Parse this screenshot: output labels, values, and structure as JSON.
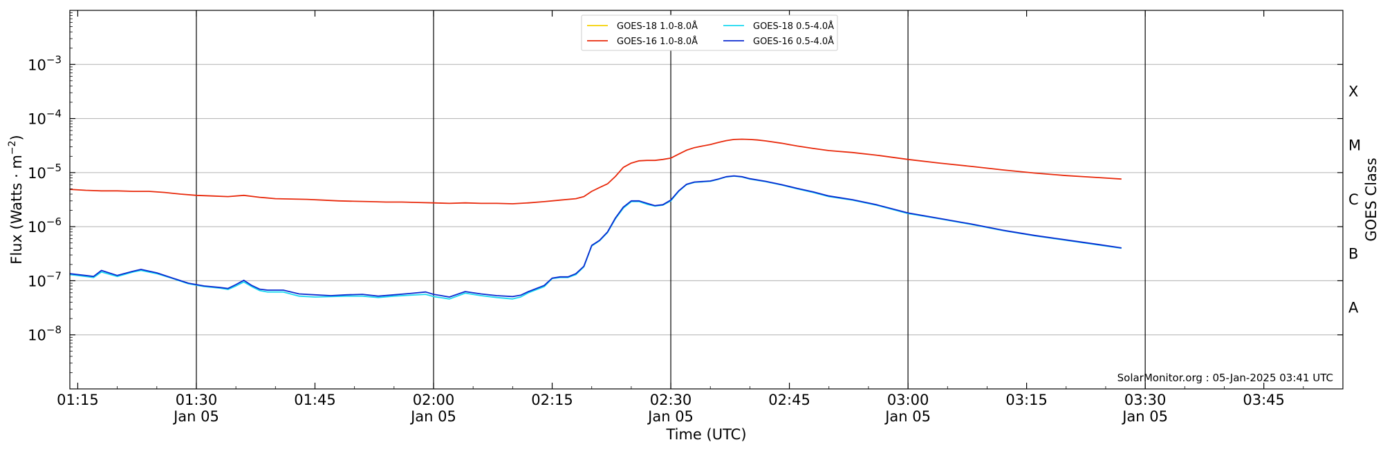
{
  "chart_data": {
    "type": "line",
    "xlabel": "Time (UTC)",
    "ylabel_main": "Flux (Watts · m",
    "ylabel_sup": "−2",
    "ylabel_end": ")",
    "y2label": "GOES Class",
    "yscale": "log",
    "ylim": [
      1e-09,
      0.01
    ],
    "xlim": [
      "01:14",
      "03:55"
    ],
    "grid": "horizontal",
    "legend_position": "top-center",
    "x_ticks": [
      {
        "time": "01:15",
        "label": "01:15",
        "sublabel": ""
      },
      {
        "time": "01:30",
        "label": "01:30",
        "sublabel": "Jan 05"
      },
      {
        "time": "01:45",
        "label": "01:45",
        "sublabel": ""
      },
      {
        "time": "02:00",
        "label": "02:00",
        "sublabel": "Jan 05"
      },
      {
        "time": "02:15",
        "label": "02:15",
        "sublabel": ""
      },
      {
        "time": "02:30",
        "label": "02:30",
        "sublabel": "Jan 05"
      },
      {
        "time": "02:45",
        "label": "02:45",
        "sublabel": ""
      },
      {
        "time": "03:00",
        "label": "03:00",
        "sublabel": "Jan 05"
      },
      {
        "time": "03:15",
        "label": "03:15",
        "sublabel": ""
      },
      {
        "time": "03:30",
        "label": "03:30",
        "sublabel": "Jan 05"
      },
      {
        "time": "03:45",
        "label": "03:45",
        "sublabel": ""
      }
    ],
    "vertical_lines": [
      "01:30",
      "02:00",
      "02:30",
      "03:00",
      "03:30"
    ],
    "y_ticks": [
      {
        "value": 1e-08,
        "base": "10",
        "exp": "−8"
      },
      {
        "value": 1e-07,
        "base": "10",
        "exp": "−7"
      },
      {
        "value": 1e-06,
        "base": "10",
        "exp": "−6"
      },
      {
        "value": 1e-05,
        "base": "10",
        "exp": "−5"
      },
      {
        "value": 0.0001,
        "base": "10",
        "exp": "−4"
      },
      {
        "value": 0.001,
        "base": "10",
        "exp": "−3"
      }
    ],
    "goes_classes": [
      {
        "label": "A",
        "value": 3.162e-08
      },
      {
        "label": "B",
        "value": 3.162e-07
      },
      {
        "label": "C",
        "value": 3.162e-06
      },
      {
        "label": "M",
        "value": 3.162e-05
      },
      {
        "label": "X",
        "value": 0.0003162
      }
    ],
    "annotation": "SolarMonitor.org : 05-Jan-2025 03:41 UTC",
    "series": [
      {
        "name": "GOES-18 1.0-8.0Å",
        "color": "#f5d000",
        "points": [],
        "draw": false
      },
      {
        "name": "GOES-16 1.0-8.0Å",
        "color": "#e8280a",
        "draw": true,
        "points": [
          [
            "01:14",
            4.9e-06
          ],
          [
            "01:16",
            4.7e-06
          ],
          [
            "01:18",
            4.6e-06
          ],
          [
            "01:20",
            4.6e-06
          ],
          [
            "01:22",
            4.5e-06
          ],
          [
            "01:24",
            4.5e-06
          ],
          [
            "01:26",
            4.3e-06
          ],
          [
            "01:28",
            4e-06
          ],
          [
            "01:30",
            3.8e-06
          ],
          [
            "01:32",
            3.7e-06
          ],
          [
            "01:34",
            3.6e-06
          ],
          [
            "01:36",
            3.8e-06
          ],
          [
            "01:38",
            3.5e-06
          ],
          [
            "01:40",
            3.3e-06
          ],
          [
            "01:42",
            3.25e-06
          ],
          [
            "01:44",
            3.2e-06
          ],
          [
            "01:46",
            3.1e-06
          ],
          [
            "01:48",
            3e-06
          ],
          [
            "01:50",
            2.95e-06
          ],
          [
            "01:52",
            2.9e-06
          ],
          [
            "01:54",
            2.85e-06
          ],
          [
            "01:56",
            2.85e-06
          ],
          [
            "01:58",
            2.8e-06
          ],
          [
            "02:00",
            2.75e-06
          ],
          [
            "02:02",
            2.7e-06
          ],
          [
            "02:04",
            2.75e-06
          ],
          [
            "02:06",
            2.7e-06
          ],
          [
            "02:08",
            2.7e-06
          ],
          [
            "02:10",
            2.65e-06
          ],
          [
            "02:12",
            2.75e-06
          ],
          [
            "02:14",
            2.9e-06
          ],
          [
            "02:16",
            3.1e-06
          ],
          [
            "02:18",
            3.3e-06
          ],
          [
            "02:19",
            3.6e-06
          ],
          [
            "02:20",
            4.5e-06
          ],
          [
            "02:21",
            5.3e-06
          ],
          [
            "02:22",
            6.2e-06
          ],
          [
            "02:23",
            8.5e-06
          ],
          [
            "02:24",
            1.25e-05
          ],
          [
            "02:25",
            1.5e-05
          ],
          [
            "02:26",
            1.65e-05
          ],
          [
            "02:27",
            1.68e-05
          ],
          [
            "02:28",
            1.68e-05
          ],
          [
            "02:29",
            1.75e-05
          ],
          [
            "02:30",
            1.85e-05
          ],
          [
            "02:31",
            2.2e-05
          ],
          [
            "02:32",
            2.6e-05
          ],
          [
            "02:33",
            2.9e-05
          ],
          [
            "02:34",
            3.1e-05
          ],
          [
            "02:35",
            3.3e-05
          ],
          [
            "02:36",
            3.6e-05
          ],
          [
            "02:37",
            3.9e-05
          ],
          [
            "02:38",
            4.1e-05
          ],
          [
            "02:39",
            4.15e-05
          ],
          [
            "02:40",
            4.1e-05
          ],
          [
            "02:41",
            4e-05
          ],
          [
            "02:42",
            3.85e-05
          ],
          [
            "02:44",
            3.5e-05
          ],
          [
            "02:46",
            3.1e-05
          ],
          [
            "02:48",
            2.8e-05
          ],
          [
            "02:50",
            2.55e-05
          ],
          [
            "02:53",
            2.35e-05
          ],
          [
            "02:56",
            2.1e-05
          ],
          [
            "03:00",
            1.75e-05
          ],
          [
            "03:04",
            1.5e-05
          ],
          [
            "03:08",
            1.3e-05
          ],
          [
            "03:12",
            1.12e-05
          ],
          [
            "03:16",
            9.8e-06
          ],
          [
            "03:20",
            8.8e-06
          ],
          [
            "03:24",
            8.1e-06
          ],
          [
            "03:27",
            7.6e-06
          ]
        ]
      },
      {
        "name": "GOES-18 0.5-4.0Å",
        "color": "#19d8f0",
        "draw": true,
        "points": [
          [
            "01:14",
            1.3e-07
          ],
          [
            "01:16",
            1.2e-07
          ],
          [
            "01:17",
            1.15e-07
          ],
          [
            "01:18",
            1.45e-07
          ],
          [
            "01:20",
            1.2e-07
          ],
          [
            "01:22",
            1.45e-07
          ],
          [
            "01:23",
            1.55e-07
          ],
          [
            "01:25",
            1.35e-07
          ],
          [
            "01:27",
            1.1e-07
          ],
          [
            "01:29",
            8.8e-08
          ],
          [
            "01:31",
            7.8e-08
          ],
          [
            "01:33",
            7.3e-08
          ],
          [
            "01:34",
            6.9e-08
          ],
          [
            "01:35",
            8e-08
          ],
          [
            "01:36",
            9.5e-08
          ],
          [
            "01:37",
            7.8e-08
          ],
          [
            "01:38",
            6.6e-08
          ],
          [
            "01:39",
            6.2e-08
          ],
          [
            "01:41",
            6.2e-08
          ],
          [
            "01:43",
            5.2e-08
          ],
          [
            "01:45",
            5e-08
          ],
          [
            "01:47",
            5.1e-08
          ],
          [
            "01:49",
            5.2e-08
          ],
          [
            "01:51",
            5.2e-08
          ],
          [
            "01:53",
            4.9e-08
          ],
          [
            "01:55",
            5.2e-08
          ],
          [
            "01:57",
            5.4e-08
          ],
          [
            "01:59",
            5.6e-08
          ],
          [
            "02:00",
            5.1e-08
          ],
          [
            "02:02",
            4.6e-08
          ],
          [
            "02:04",
            5.9e-08
          ],
          [
            "02:06",
            5.3e-08
          ],
          [
            "02:08",
            4.9e-08
          ],
          [
            "02:10",
            4.6e-08
          ],
          [
            "02:11",
            5e-08
          ],
          [
            "02:12",
            6e-08
          ],
          [
            "02:14",
            7.8e-08
          ],
          [
            "02:15",
            1.1e-07
          ],
          [
            "02:16",
            1.15e-07
          ],
          [
            "02:17",
            1.15e-07
          ],
          [
            "02:18",
            1.3e-07
          ],
          [
            "02:19",
            1.8e-07
          ],
          [
            "02:20",
            4.4e-07
          ],
          [
            "02:21",
            5.5e-07
          ],
          [
            "02:22",
            7.8e-07
          ],
          [
            "02:23",
            1.4e-06
          ],
          [
            "02:24",
            2.2e-06
          ],
          [
            "02:25",
            2.9e-06
          ],
          [
            "02:26",
            2.9e-06
          ],
          [
            "02:27",
            2.6e-06
          ],
          [
            "02:28",
            2.4e-06
          ],
          [
            "02:29",
            2.5e-06
          ],
          [
            "02:30",
            3e-06
          ],
          [
            "02:31",
            4.5e-06
          ],
          [
            "02:32",
            6e-06
          ],
          [
            "02:33",
            6.6e-06
          ],
          [
            "02:35",
            6.9e-06
          ],
          [
            "02:36",
            7.5e-06
          ],
          [
            "02:37",
            8.3e-06
          ],
          [
            "02:38",
            8.6e-06
          ],
          [
            "02:39",
            8.3e-06
          ],
          [
            "02:40",
            7.6e-06
          ],
          [
            "02:42",
            6.8e-06
          ],
          [
            "02:44",
            5.9e-06
          ],
          [
            "02:46",
            5e-06
          ],
          [
            "02:48",
            4.3e-06
          ],
          [
            "02:50",
            3.6e-06
          ],
          [
            "02:53",
            3.1e-06
          ],
          [
            "02:56",
            2.5e-06
          ],
          [
            "03:00",
            1.75e-06
          ],
          [
            "03:04",
            1.4e-06
          ],
          [
            "03:08",
            1.1e-06
          ],
          [
            "03:12",
            8.5e-07
          ],
          [
            "03:16",
            6.8e-07
          ],
          [
            "03:20",
            5.6e-07
          ],
          [
            "03:24",
            4.6e-07
          ],
          [
            "03:27",
            4e-07
          ]
        ]
      },
      {
        "name": "GOES-16 0.5-4.0Å",
        "color": "#0a2ad0",
        "draw": true,
        "points": [
          [
            "01:14",
            1.35e-07
          ],
          [
            "01:16",
            1.25e-07
          ],
          [
            "01:17",
            1.2e-07
          ],
          [
            "01:18",
            1.55e-07
          ],
          [
            "01:20",
            1.25e-07
          ],
          [
            "01:22",
            1.5e-07
          ],
          [
            "01:23",
            1.62e-07
          ],
          [
            "01:25",
            1.4e-07
          ],
          [
            "01:27",
            1.12e-07
          ],
          [
            "01:29",
            9e-08
          ],
          [
            "01:31",
            8e-08
          ],
          [
            "01:33",
            7.5e-08
          ],
          [
            "01:34",
            7.2e-08
          ],
          [
            "01:35",
            8.5e-08
          ],
          [
            "01:36",
            1.02e-07
          ],
          [
            "01:37",
            8.2e-08
          ],
          [
            "01:38",
            7e-08
          ],
          [
            "01:39",
            6.7e-08
          ],
          [
            "01:41",
            6.7e-08
          ],
          [
            "01:43",
            5.7e-08
          ],
          [
            "01:45",
            5.5e-08
          ],
          [
            "01:47",
            5.3e-08
          ],
          [
            "01:49",
            5.5e-08
          ],
          [
            "01:51",
            5.6e-08
          ],
          [
            "01:53",
            5.2e-08
          ],
          [
            "01:55",
            5.5e-08
          ],
          [
            "01:57",
            5.8e-08
          ],
          [
            "01:59",
            6.2e-08
          ],
          [
            "02:00",
            5.6e-08
          ],
          [
            "02:02",
            5e-08
          ],
          [
            "02:04",
            6.3e-08
          ],
          [
            "02:06",
            5.7e-08
          ],
          [
            "02:08",
            5.3e-08
          ],
          [
            "02:10",
            5.1e-08
          ],
          [
            "02:11",
            5.4e-08
          ],
          [
            "02:12",
            6.3e-08
          ],
          [
            "02:14",
            8.2e-08
          ],
          [
            "02:15",
            1.12e-07
          ],
          [
            "02:16",
            1.18e-07
          ],
          [
            "02:17",
            1.18e-07
          ],
          [
            "02:18",
            1.35e-07
          ],
          [
            "02:19",
            1.85e-07
          ],
          [
            "02:20",
            4.5e-07
          ],
          [
            "02:21",
            5.6e-07
          ],
          [
            "02:22",
            8e-07
          ],
          [
            "02:23",
            1.45e-06
          ],
          [
            "02:24",
            2.3e-06
          ],
          [
            "02:25",
            3e-06
          ],
          [
            "02:26",
            3e-06
          ],
          [
            "02:27",
            2.7e-06
          ],
          [
            "02:28",
            2.45e-06
          ],
          [
            "02:29",
            2.55e-06
          ],
          [
            "02:30",
            3.1e-06
          ],
          [
            "02:31",
            4.6e-06
          ],
          [
            "02:32",
            6.1e-06
          ],
          [
            "02:33",
            6.7e-06
          ],
          [
            "02:35",
            7e-06
          ],
          [
            "02:36",
            7.6e-06
          ],
          [
            "02:37",
            8.4e-06
          ],
          [
            "02:38",
            8.7e-06
          ],
          [
            "02:39",
            8.4e-06
          ],
          [
            "02:40",
            7.7e-06
          ],
          [
            "02:42",
            6.9e-06
          ],
          [
            "02:44",
            6e-06
          ],
          [
            "02:46",
            5.1e-06
          ],
          [
            "02:48",
            4.4e-06
          ],
          [
            "02:50",
            3.7e-06
          ],
          [
            "02:53",
            3.15e-06
          ],
          [
            "02:56",
            2.55e-06
          ],
          [
            "03:00",
            1.8e-06
          ],
          [
            "03:04",
            1.42e-06
          ],
          [
            "03:08",
            1.12e-06
          ],
          [
            "03:12",
            8.6e-07
          ],
          [
            "03:16",
            6.9e-07
          ],
          [
            "03:20",
            5.7e-07
          ],
          [
            "03:24",
            4.7e-07
          ],
          [
            "03:27",
            4.05e-07
          ]
        ]
      }
    ]
  }
}
